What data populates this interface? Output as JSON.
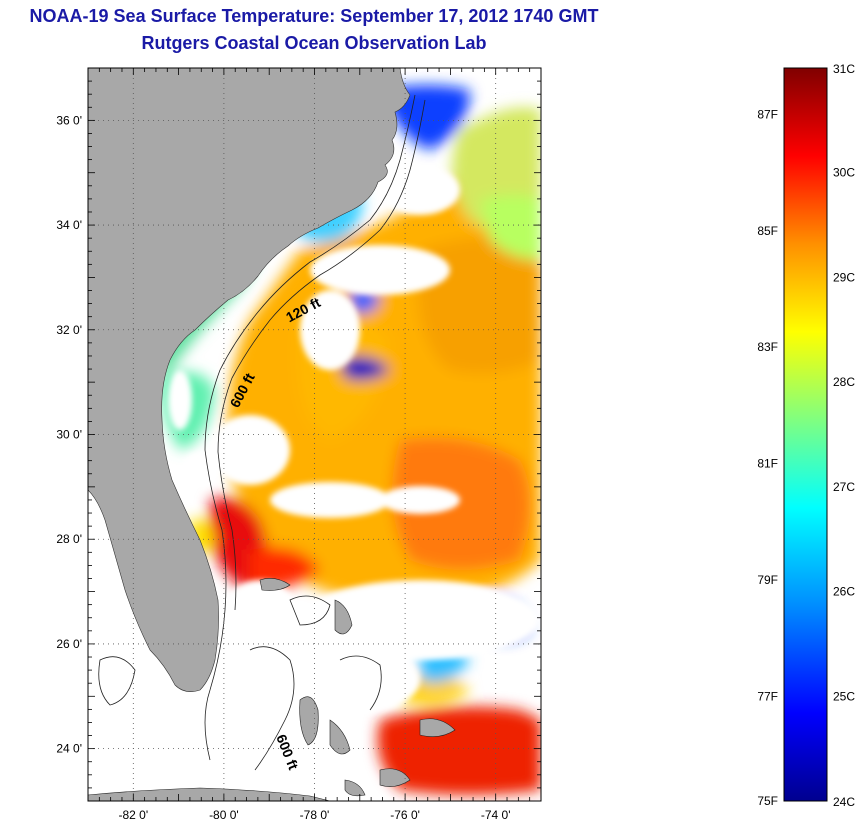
{
  "title": "NOAA-19 Sea Surface Temperature:  September 17, 2012 1740 GMT",
  "subtitle": "Rutgers Coastal Ocean Observation Lab",
  "map": {
    "lon_range": [
      -83,
      -73
    ],
    "lat_range": [
      23,
      37
    ],
    "lat_ticks": [
      {
        "value": 36,
        "label": "36 0'"
      },
      {
        "value": 34,
        "label": "34 0'"
      },
      {
        "value": 32,
        "label": "32 0'"
      },
      {
        "value": 30,
        "label": "30 0'"
      },
      {
        "value": 28,
        "label": "28 0'"
      },
      {
        "value": 26,
        "label": "26 0'"
      },
      {
        "value": 24,
        "label": "24 0'"
      }
    ],
    "lon_ticks": [
      {
        "value": -82,
        "label": "-82 0'"
      },
      {
        "value": -80,
        "label": "-80 0'"
      },
      {
        "value": -78,
        "label": "-78 0'"
      },
      {
        "value": -76,
        "label": "-76 0'"
      },
      {
        "value": -74,
        "label": "-74 0'"
      }
    ],
    "contour_labels": [
      {
        "text": "120 ft",
        "lon": -78.2,
        "lat": 32.3,
        "angle": -28
      },
      {
        "text": "600 ft",
        "lon": -79.5,
        "lat": 30.8,
        "angle": -62
      },
      {
        "text": "600 ft",
        "lon": -78.7,
        "lat": 23.9,
        "angle": 68
      }
    ],
    "colors": {
      "land": "#a8a8a8",
      "nodata": "#ffffff",
      "grid": "#555555"
    }
  },
  "colorbar": {
    "celsius_range": [
      24,
      31
    ],
    "celsius_ticks": [
      "31C",
      "30C",
      "29C",
      "28C",
      "27C",
      "26C",
      "25C",
      "24C"
    ],
    "fahrenheit_ticks": [
      {
        "f": 87,
        "label": "87F"
      },
      {
        "f": 85,
        "label": "85F"
      },
      {
        "f": 83,
        "label": "83F"
      },
      {
        "f": 81,
        "label": "81F"
      },
      {
        "f": 79,
        "label": "79F"
      },
      {
        "f": 77,
        "label": "77F"
      },
      {
        "f": 75,
        "label": "75F"
      }
    ],
    "gradient": [
      "#00008f",
      "#0000ff",
      "#0080ff",
      "#00ffff",
      "#80ff80",
      "#ffff00",
      "#ff8000",
      "#ff0000",
      "#800000"
    ]
  }
}
